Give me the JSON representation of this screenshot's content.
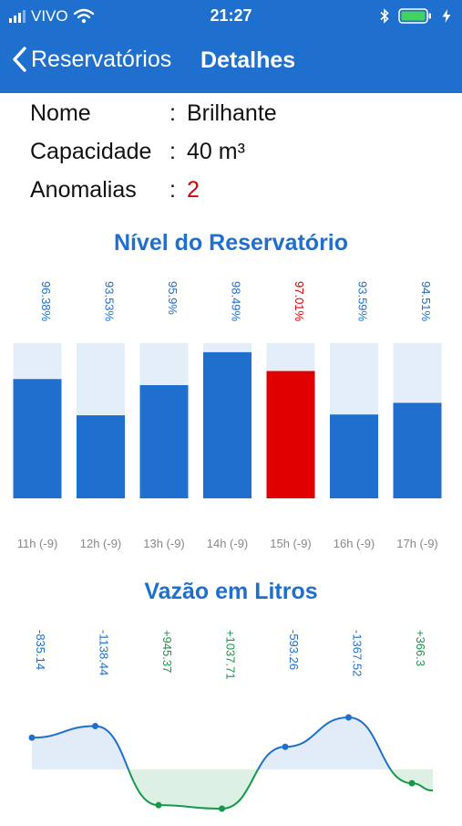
{
  "status_bar": {
    "carrier": "VIVO",
    "time": "21:27"
  },
  "nav": {
    "back_label": "Reservatórios",
    "title": "Detalhes"
  },
  "details": {
    "name_label": "Nome",
    "name_value": "Brilhante",
    "capacity_label": "Capacidade",
    "capacity_value": "40 m³",
    "anomalies_label": "Anomalias",
    "anomalies_value": "2",
    "separator": ":"
  },
  "colors": {
    "primary": "#1f6fcf",
    "anomaly": "#e00000",
    "positive": "#16994a",
    "track": "#e3eef9"
  },
  "chart_data": [
    {
      "type": "bar",
      "title": "Nível do Reservatório",
      "categories": [
        "11h (-9)",
        "12h (-9)",
        "13h (-9)",
        "14h (-9)",
        "15h (-9)",
        "16h (-9)",
        "17h (-9)"
      ],
      "values": [
        96.38,
        93.53,
        95.9,
        98.49,
        97.01,
        93.59,
        94.51
      ],
      "value_labels": [
        "96.38%",
        "93.53%",
        "95.9%",
        "98.49%",
        "97.01%",
        "93.59%",
        "94.51%"
      ],
      "highlight_index": 4,
      "ylim": [
        0,
        100
      ]
    },
    {
      "type": "area",
      "title": "Vazão em Litros",
      "values": [
        -835.14,
        -1138.44,
        945.37,
        1037.71,
        -593.26,
        -1367.52,
        366.3
      ],
      "value_labels": [
        "-835.14",
        "-1138.44",
        "+945.37",
        "+1037.71",
        "-593.26",
        "-1367.52",
        "+366.3"
      ]
    }
  ]
}
